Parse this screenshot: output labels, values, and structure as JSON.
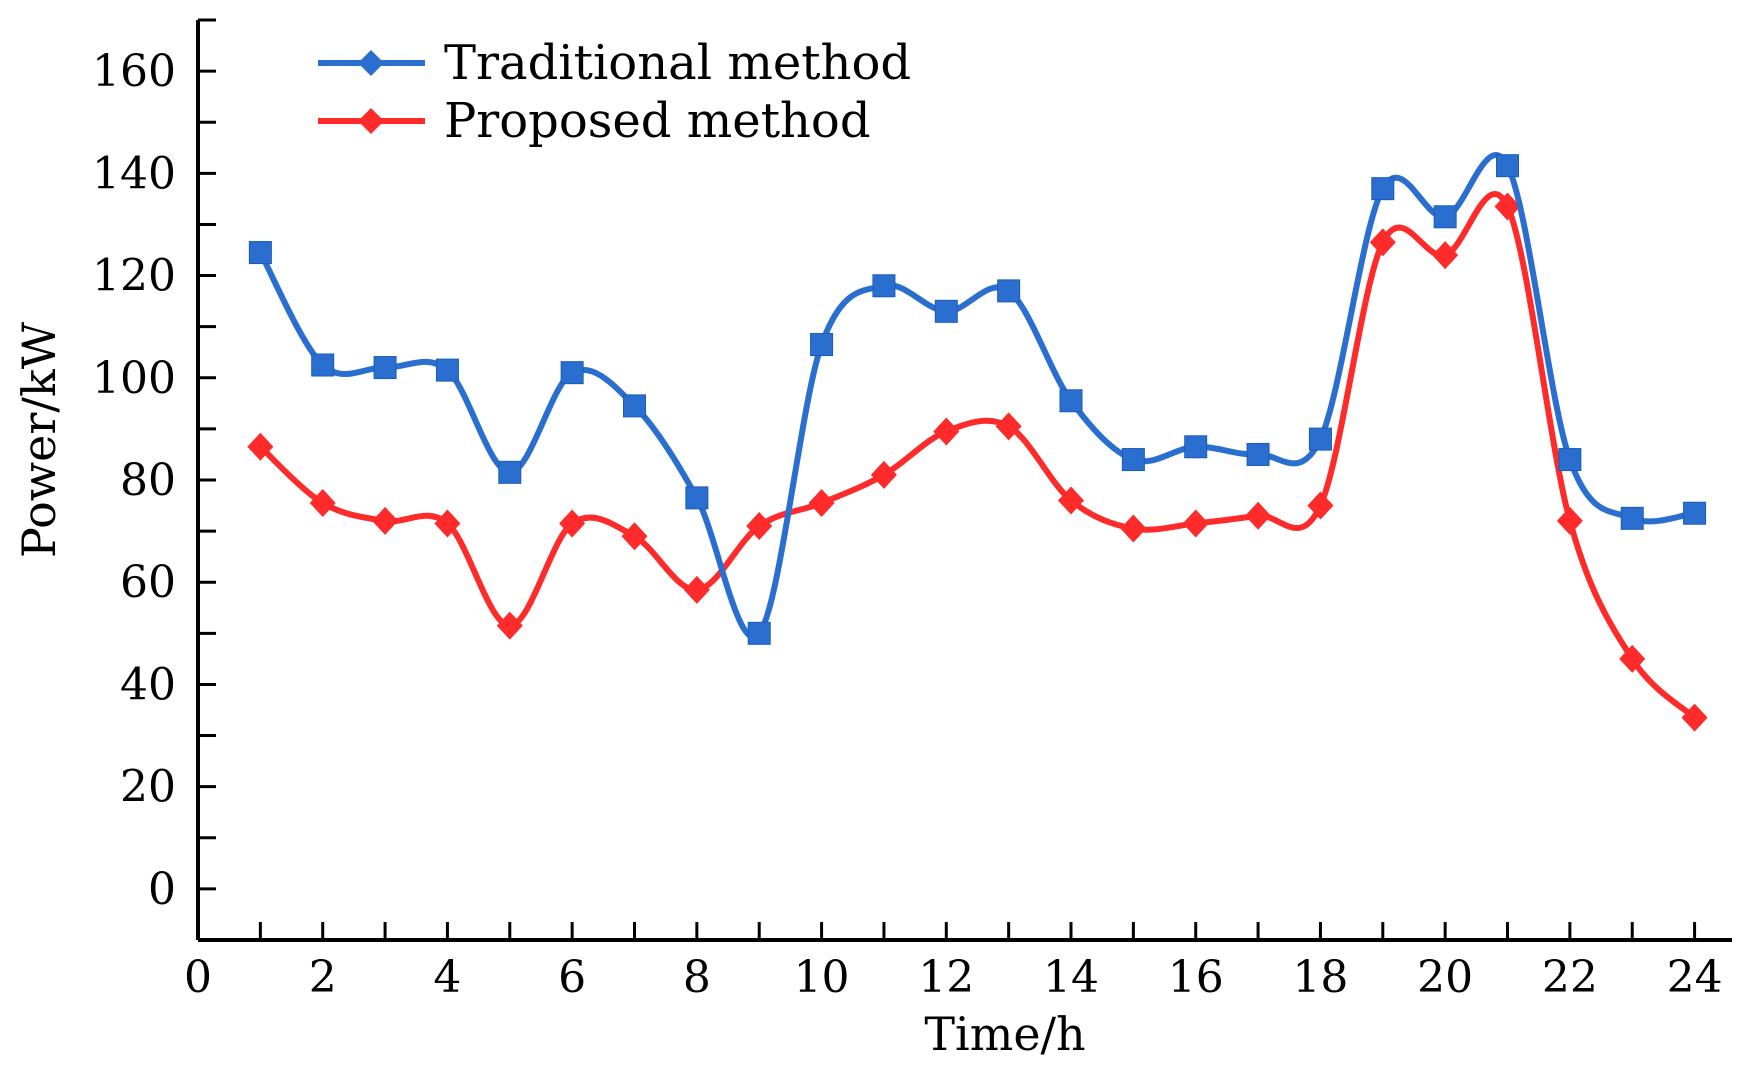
{
  "chart_data": {
    "type": "line",
    "title": "",
    "xlabel": "Time/h",
    "ylabel": "Power/kW",
    "xlim": [
      0,
      24.6
    ],
    "ylim": [
      -10,
      170
    ],
    "x_ticks": [
      0,
      2,
      4,
      6,
      8,
      10,
      12,
      14,
      16,
      18,
      20,
      22,
      24
    ],
    "y_ticks": [
      0,
      20,
      40,
      60,
      80,
      100,
      120,
      140,
      160
    ],
    "x_minor_step": 1,
    "y_minor_step": 10,
    "grid": false,
    "legend_position": "top-left",
    "x": [
      1,
      2,
      3,
      4,
      5,
      6,
      7,
      8,
      9,
      10,
      11,
      12,
      13,
      14,
      15,
      16,
      17,
      18,
      19,
      20,
      21,
      22,
      23,
      24
    ],
    "series": [
      {
        "name": "Traditional method",
        "color": "#2a6fcf",
        "values": [
          124.5,
          102.5,
          102,
          101.5,
          81.5,
          101,
          94.5,
          76.5,
          50,
          106.5,
          118,
          113,
          117,
          95.5,
          84,
          86.5,
          85,
          88,
          137,
          131.5,
          141.5,
          84,
          72.5,
          73.5
        ]
      },
      {
        "name": "Proposed method",
        "color": "#ff2a2a",
        "values": [
          86.5,
          75.5,
          72,
          71.5,
          51.5,
          71.5,
          69,
          58.5,
          71,
          75.5,
          81,
          89.5,
          90.5,
          76,
          70.5,
          71.5,
          73,
          75,
          126.5,
          124,
          133.5,
          72,
          45,
          33.5
        ]
      }
    ]
  }
}
